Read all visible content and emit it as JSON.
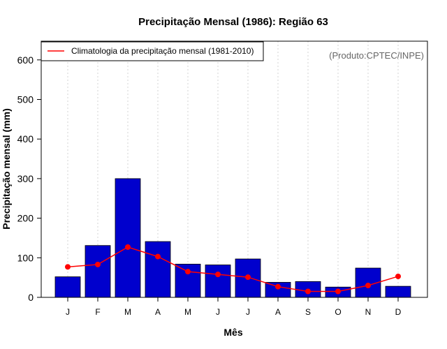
{
  "chart_data": {
    "type": "bar",
    "title": "Precipitação Mensal (1986): Região 63",
    "xlabel": "Mês",
    "ylabel": "Precipitação mensal (mm)",
    "categories": [
      "J",
      "F",
      "M",
      "A",
      "M",
      "J",
      "J",
      "A",
      "S",
      "O",
      "N",
      "D"
    ],
    "ylim": [
      0,
      650
    ],
    "yticks": [
      0,
      100,
      200,
      300,
      400,
      500,
      600
    ],
    "grid": "vertical dotted",
    "source_note": "(Produto:CPTEC/INPE)",
    "series": [
      {
        "name": "Precipitação mensal (1986)",
        "type": "bar",
        "color": "#0000CD",
        "values": [
          52,
          131,
          300,
          141,
          84,
          82,
          97,
          38,
          40,
          26,
          74,
          28
        ]
      },
      {
        "name": "Climatologia da precipitação mensal (1981-2010)",
        "type": "line",
        "color": "#FF0000",
        "values": [
          77,
          83,
          127,
          103,
          65,
          58,
          51,
          27,
          15,
          15,
          30,
          53
        ]
      }
    ],
    "legend": {
      "position": "top-left",
      "entries": [
        "Climatologia da precipitação mensal (1981-2010)"
      ]
    }
  }
}
